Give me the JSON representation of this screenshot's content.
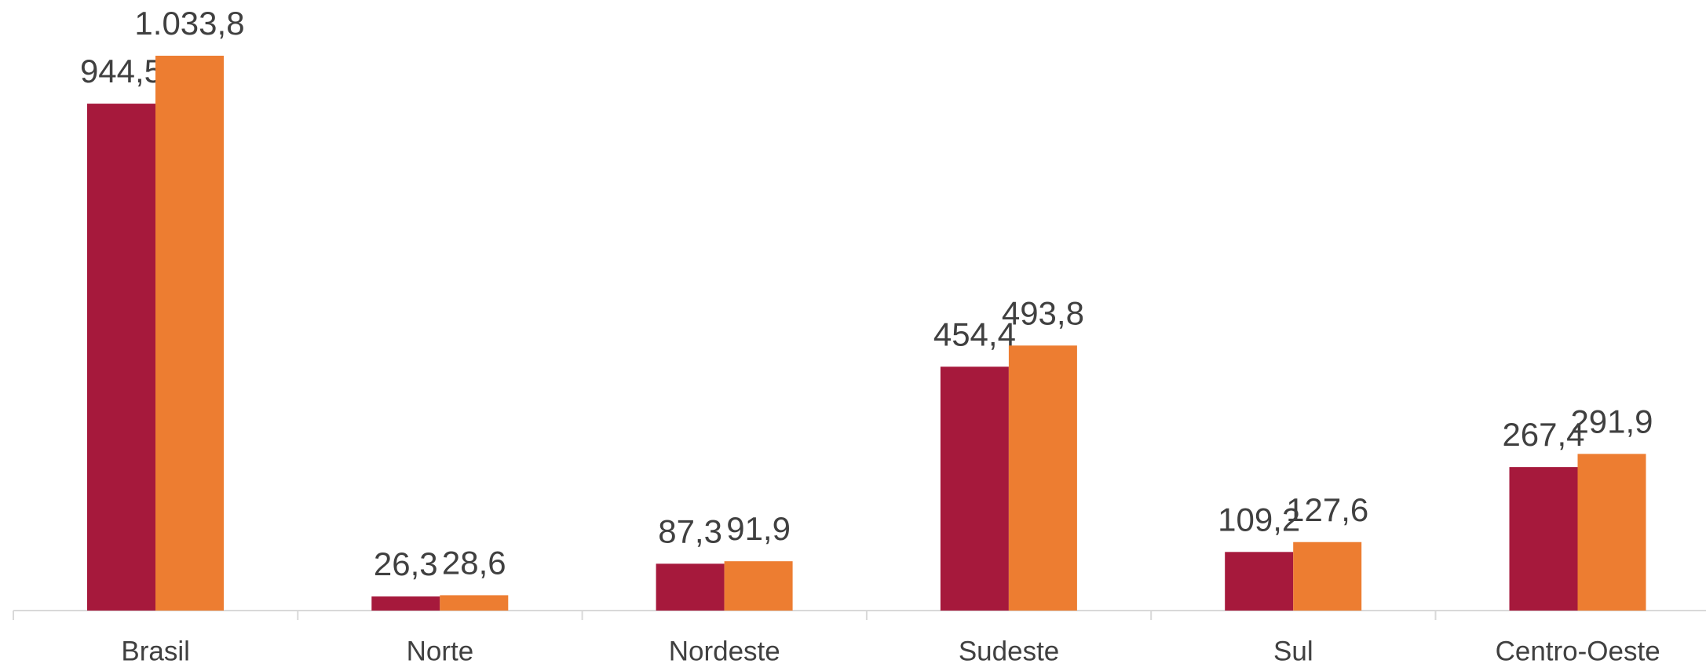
{
  "chart_data": {
    "type": "bar",
    "categories": [
      "Brasil",
      "Norte",
      "Nordeste",
      "Sudeste",
      "Sul",
      "Centro-Oeste"
    ],
    "series": [
      {
        "color": "#a6193c",
        "values": [
          944.5,
          26.3,
          87.3,
          454.4,
          109.2,
          267.4
        ],
        "value_labels": [
          "944,5",
          "26,3",
          "87,3",
          "454,4",
          "109,2",
          "267,4"
        ]
      },
      {
        "color": "#ed7d31",
        "values": [
          1033.8,
          28.6,
          91.9,
          493.8,
          127.6,
          291.9
        ],
        "value_labels": [
          "1.033,8",
          "28,6",
          "91,9",
          "493,8",
          "127,6",
          "291,9"
        ]
      }
    ]
  }
}
